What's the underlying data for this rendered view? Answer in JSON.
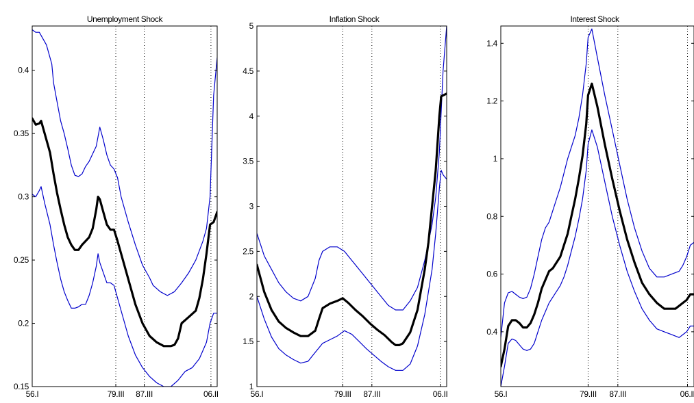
{
  "colors": {
    "median": "#000000",
    "band": "#0000cc"
  },
  "chart_data": [
    {
      "type": "line",
      "title": "Unemployment Shock",
      "ylim": [
        0.15,
        0.435
      ],
      "yticks": [
        0.15,
        0.2,
        0.25,
        0.3,
        0.35,
        0.4
      ],
      "ytick_labels": [
        "0.15",
        "0.2",
        "0.25",
        "0.3",
        "0.35",
        "0.4"
      ],
      "xlim": [
        1956.0,
        2008.0
      ],
      "xticks": [
        1956.0,
        1979.5,
        1987.5,
        2006.25
      ],
      "xtick_labels": [
        "56.I",
        "79.III",
        "87.III",
        "06.II"
      ],
      "reference_lines": [
        1979.5,
        1987.5,
        2006.25
      ],
      "grid": false,
      "series": [
        {
          "role": "upper",
          "x": [
            1956.0,
            1957.0,
            1958.0,
            1960.0,
            1961.5,
            1962.0,
            1963.0,
            1964.0,
            1965.0,
            1966.0,
            1967.0,
            1968.0,
            1969.0,
            1970.0,
            1971.0,
            1972.0,
            1973.0,
            1974.0,
            1975.0,
            1976.0,
            1977.0,
            1978.0,
            1979.0,
            1980.0,
            1981.0,
            1983.0,
            1985.0,
            1987.0,
            1989.0,
            1990.0,
            1992.0,
            1994.0,
            1996.0,
            1998.0,
            2000.0,
            2002.0,
            2004.0,
            2005.0,
            2006.0,
            2007.0,
            2008.0
          ],
          "values": [
            0.432,
            0.43,
            0.43,
            0.42,
            0.405,
            0.39,
            0.375,
            0.36,
            0.35,
            0.338,
            0.325,
            0.317,
            0.316,
            0.318,
            0.324,
            0.328,
            0.334,
            0.34,
            0.355,
            0.345,
            0.333,
            0.325,
            0.322,
            0.315,
            0.3,
            0.28,
            0.262,
            0.246,
            0.236,
            0.23,
            0.225,
            0.222,
            0.225,
            0.232,
            0.24,
            0.25,
            0.265,
            0.275,
            0.3,
            0.38,
            0.41
          ]
        },
        {
          "role": "median",
          "x": [
            1956.0,
            1957.0,
            1958.0,
            1958.5,
            1959.5,
            1961.0,
            1962.0,
            1963.0,
            1964.0,
            1965.0,
            1966.0,
            1967.0,
            1968.0,
            1969.0,
            1970.0,
            1971.0,
            1972.0,
            1973.0,
            1974.0,
            1974.5,
            1975.0,
            1976.0,
            1977.0,
            1978.0,
            1979.0,
            1980.0,
            1981.0,
            1983.0,
            1985.0,
            1987.0,
            1989.0,
            1991.0,
            1993.0,
            1995.0,
            1996.0,
            1997.0,
            1998.0,
            2000.0,
            2002.0,
            2003.0,
            2004.0,
            2005.0,
            2006.0,
            2007.0,
            2008.0
          ],
          "values": [
            0.362,
            0.357,
            0.358,
            0.36,
            0.35,
            0.335,
            0.318,
            0.303,
            0.29,
            0.278,
            0.268,
            0.262,
            0.258,
            0.258,
            0.262,
            0.265,
            0.268,
            0.275,
            0.29,
            0.3,
            0.298,
            0.288,
            0.278,
            0.274,
            0.274,
            0.265,
            0.255,
            0.235,
            0.215,
            0.2,
            0.19,
            0.185,
            0.182,
            0.182,
            0.183,
            0.188,
            0.2,
            0.205,
            0.21,
            0.22,
            0.235,
            0.255,
            0.278,
            0.28,
            0.288
          ]
        },
        {
          "role": "lower",
          "x": [
            1956.0,
            1957.0,
            1958.0,
            1958.5,
            1959.5,
            1961.0,
            1962.0,
            1963.0,
            1964.0,
            1965.0,
            1966.0,
            1967.0,
            1968.0,
            1969.0,
            1970.0,
            1971.0,
            1972.0,
            1973.0,
            1974.0,
            1974.5,
            1975.0,
            1976.0,
            1977.0,
            1978.0,
            1979.0,
            1980.0,
            1981.0,
            1983.0,
            1985.0,
            1987.0,
            1989.0,
            1991.0,
            1993.0,
            1995.0,
            1997.0,
            1999.0,
            2001.0,
            2003.0,
            2005.0,
            2006.0,
            2007.0,
            2008.0
          ],
          "values": [
            0.302,
            0.3,
            0.305,
            0.308,
            0.295,
            0.278,
            0.262,
            0.248,
            0.235,
            0.225,
            0.218,
            0.212,
            0.212,
            0.213,
            0.215,
            0.215,
            0.222,
            0.232,
            0.245,
            0.255,
            0.248,
            0.24,
            0.232,
            0.232,
            0.23,
            0.22,
            0.21,
            0.19,
            0.175,
            0.165,
            0.158,
            0.153,
            0.15,
            0.15,
            0.155,
            0.162,
            0.165,
            0.172,
            0.185,
            0.2,
            0.208,
            0.208
          ]
        }
      ]
    },
    {
      "type": "line",
      "title": "Inflation Shock",
      "ylim": [
        1.0,
        5.0
      ],
      "yticks": [
        1.0,
        1.5,
        2.0,
        2.5,
        3.0,
        3.5,
        4.0,
        4.5,
        5.0
      ],
      "ytick_labels": [
        "1",
        "1.5",
        "2",
        "2.5",
        "3",
        "3.5",
        "4",
        "4.5",
        "5"
      ],
      "xlim": [
        1956.0,
        2008.0
      ],
      "xticks": [
        1956.0,
        1979.5,
        1987.5,
        2006.25
      ],
      "xtick_labels": [
        "56.I",
        "79.III",
        "87.III",
        "06.II"
      ],
      "reference_lines": [
        1979.5,
        1987.5,
        2006.25
      ],
      "grid": false,
      "series": [
        {
          "role": "upper",
          "x": [
            1956.0,
            1958.0,
            1960.0,
            1962.0,
            1964.0,
            1966.0,
            1968.0,
            1970.0,
            1972.0,
            1973.0,
            1974.0,
            1976.0,
            1978.0,
            1980.0,
            1982.0,
            1984.0,
            1986.0,
            1988.0,
            1990.0,
            1992.0,
            1994.0,
            1996.0,
            1998.0,
            2000.0,
            2002.0,
            2004.0,
            2005.0,
            2006.0,
            2007.0,
            2008.0
          ],
          "values": [
            2.7,
            2.45,
            2.3,
            2.15,
            2.05,
            1.98,
            1.95,
            2.0,
            2.2,
            2.4,
            2.5,
            2.55,
            2.55,
            2.5,
            2.4,
            2.3,
            2.2,
            2.1,
            2.0,
            1.9,
            1.85,
            1.85,
            1.95,
            2.1,
            2.4,
            2.8,
            3.1,
            3.6,
            4.5,
            5.0
          ]
        },
        {
          "role": "median",
          "x": [
            1956.0,
            1958.0,
            1960.0,
            1962.0,
            1964.0,
            1966.0,
            1968.0,
            1970.0,
            1972.0,
            1973.0,
            1974.0,
            1976.0,
            1978.0,
            1979.5,
            1981.0,
            1983.0,
            1985.0,
            1987.0,
            1989.0,
            1991.0,
            1993.0,
            1994.0,
            1995.0,
            1996.0,
            1998.0,
            2000.0,
            2002.0,
            2003.0,
            2004.0,
            2005.0,
            2006.0,
            2006.5,
            2007.0,
            2008.0
          ],
          "values": [
            2.35,
            2.05,
            1.85,
            1.72,
            1.65,
            1.6,
            1.56,
            1.56,
            1.62,
            1.75,
            1.87,
            1.92,
            1.95,
            1.98,
            1.93,
            1.85,
            1.78,
            1.7,
            1.63,
            1.57,
            1.49,
            1.46,
            1.46,
            1.48,
            1.6,
            1.85,
            2.3,
            2.6,
            3.0,
            3.4,
            4.0,
            4.22,
            4.23,
            4.25
          ]
        },
        {
          "role": "lower",
          "x": [
            1956.0,
            1958.0,
            1960.0,
            1962.0,
            1964.0,
            1966.0,
            1968.0,
            1970.0,
            1972.0,
            1974.0,
            1976.0,
            1978.0,
            1980.0,
            1982.0,
            1984.0,
            1986.0,
            1988.0,
            1990.0,
            1992.0,
            1994.0,
            1996.0,
            1998.0,
            2000.0,
            2002.0,
            2004.0,
            2005.0,
            2006.0,
            2006.5,
            2007.0,
            2008.0
          ],
          "values": [
            2.0,
            1.75,
            1.55,
            1.42,
            1.35,
            1.3,
            1.26,
            1.28,
            1.38,
            1.48,
            1.52,
            1.56,
            1.62,
            1.58,
            1.5,
            1.42,
            1.35,
            1.28,
            1.22,
            1.18,
            1.18,
            1.25,
            1.45,
            1.8,
            2.3,
            2.7,
            3.2,
            3.4,
            3.35,
            3.3
          ]
        }
      ]
    },
    {
      "type": "line",
      "title": "Interest Shock",
      "ylim": [
        0.21,
        1.46
      ],
      "yticks": [
        0.4,
        0.6,
        0.8,
        1.0,
        1.2,
        1.4
      ],
      "ytick_labels": [
        "0.4",
        "0.6",
        "0.8",
        "1",
        "1.2",
        "1.4"
      ],
      "xlim": [
        1956.0,
        2008.0
      ],
      "xticks": [
        1956.0,
        1979.5,
        1987.5,
        2006.25
      ],
      "xtick_labels": [
        "56.I",
        "79.III",
        "87.III",
        "06.II"
      ],
      "reference_lines": [
        1979.5,
        1987.5,
        2006.25
      ],
      "grid": false,
      "series": [
        {
          "role": "upper",
          "x": [
            1956.0,
            1957.0,
            1958.0,
            1959.0,
            1960.0,
            1961.0,
            1962.0,
            1963.0,
            1964.0,
            1965.0,
            1966.0,
            1967.0,
            1968.0,
            1969.0,
            1970.0,
            1971.0,
            1972.0,
            1973.0,
            1974.0,
            1975.0,
            1976.0,
            1977.0,
            1978.0,
            1979.0,
            1979.5,
            1980.5,
            1982.0,
            1984.0,
            1986.0,
            1988.0,
            1990.0,
            1992.0,
            1994.0,
            1996.0,
            1998.0,
            2000.0,
            2002.0,
            2004.0,
            2005.0,
            2006.0,
            2007.0,
            2008.0
          ],
          "values": [
            0.38,
            0.5,
            0.535,
            0.54,
            0.53,
            0.52,
            0.515,
            0.52,
            0.55,
            0.6,
            0.66,
            0.72,
            0.76,
            0.78,
            0.82,
            0.86,
            0.9,
            0.95,
            1.0,
            1.04,
            1.08,
            1.14,
            1.22,
            1.33,
            1.42,
            1.45,
            1.35,
            1.22,
            1.1,
            0.98,
            0.86,
            0.76,
            0.68,
            0.62,
            0.59,
            0.59,
            0.6,
            0.61,
            0.63,
            0.66,
            0.7,
            0.71
          ]
        },
        {
          "role": "median",
          "x": [
            1956.0,
            1957.0,
            1958.0,
            1959.0,
            1960.0,
            1961.0,
            1962.0,
            1963.0,
            1964.0,
            1965.0,
            1966.0,
            1967.0,
            1968.0,
            1969.0,
            1970.0,
            1971.0,
            1972.0,
            1973.0,
            1974.0,
            1975.0,
            1976.0,
            1977.0,
            1978.0,
            1979.0,
            1979.5,
            1980.5,
            1982.0,
            1984.0,
            1986.0,
            1988.0,
            1990.0,
            1992.0,
            1994.0,
            1996.0,
            1998.0,
            2000.0,
            2002.0,
            2003.0,
            2004.0,
            2005.0,
            2006.0,
            2007.0,
            2008.0
          ],
          "values": [
            0.28,
            0.34,
            0.42,
            0.44,
            0.44,
            0.43,
            0.415,
            0.415,
            0.43,
            0.46,
            0.5,
            0.55,
            0.58,
            0.61,
            0.62,
            0.64,
            0.66,
            0.7,
            0.74,
            0.8,
            0.86,
            0.93,
            1.01,
            1.12,
            1.22,
            1.26,
            1.18,
            1.05,
            0.93,
            0.82,
            0.72,
            0.64,
            0.57,
            0.53,
            0.5,
            0.48,
            0.48,
            0.48,
            0.49,
            0.5,
            0.51,
            0.53,
            0.53
          ]
        },
        {
          "role": "lower",
          "x": [
            1956.0,
            1957.0,
            1958.0,
            1959.0,
            1960.0,
            1961.0,
            1962.0,
            1963.0,
            1964.0,
            1965.0,
            1966.0,
            1967.0,
            1968.0,
            1969.0,
            1970.0,
            1971.0,
            1972.0,
            1973.0,
            1974.0,
            1975.0,
            1976.0,
            1977.0,
            1978.0,
            1979.0,
            1979.5,
            1980.5,
            1982.0,
            1984.0,
            1986.0,
            1988.0,
            1990.0,
            1992.0,
            1994.0,
            1996.0,
            1998.0,
            2000.0,
            2002.0,
            2004.0,
            2005.0,
            2006.0,
            2007.0,
            2008.0
          ],
          "values": [
            0.21,
            0.28,
            0.36,
            0.375,
            0.37,
            0.355,
            0.34,
            0.335,
            0.34,
            0.36,
            0.4,
            0.44,
            0.47,
            0.5,
            0.52,
            0.54,
            0.56,
            0.59,
            0.63,
            0.68,
            0.73,
            0.79,
            0.86,
            0.96,
            1.05,
            1.1,
            1.04,
            0.92,
            0.8,
            0.7,
            0.61,
            0.54,
            0.48,
            0.44,
            0.41,
            0.4,
            0.39,
            0.38,
            0.39,
            0.4,
            0.42,
            0.42
          ]
        }
      ]
    }
  ]
}
